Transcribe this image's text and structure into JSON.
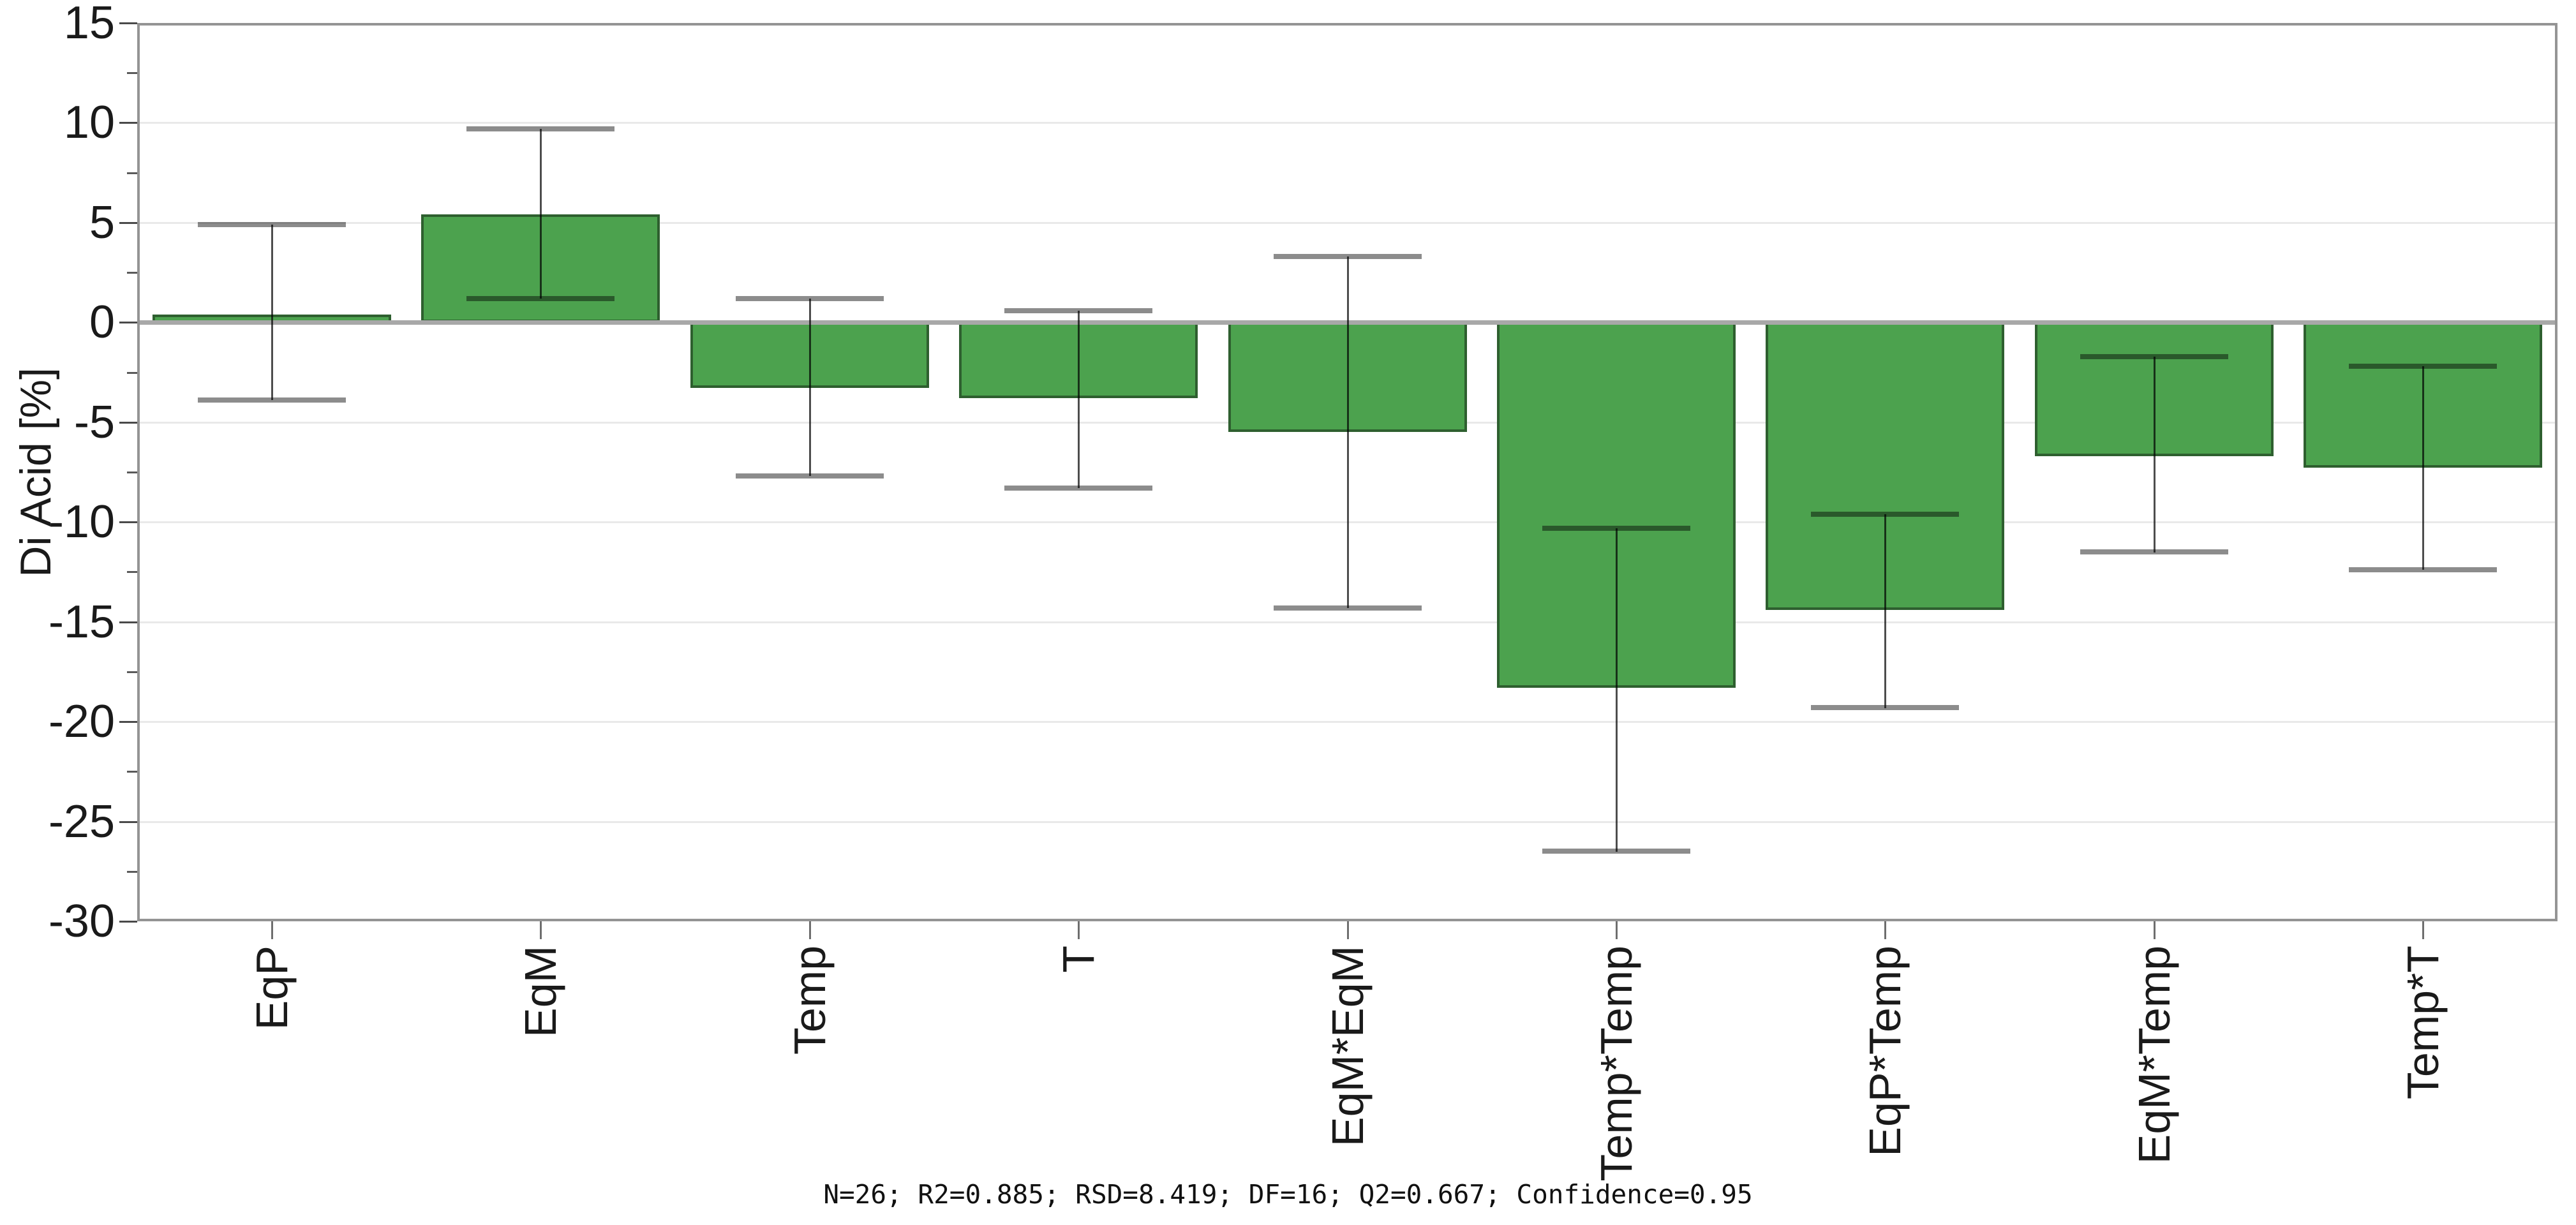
{
  "chart_data": {
    "type": "bar",
    "title": "",
    "ylabel": "Di Acid [%]",
    "xlabel": "",
    "categories": [
      "EqP",
      "EqM",
      "Temp",
      "T",
      "EqM*EqM",
      "Temp*Temp",
      "EqP*Temp",
      "EqM*Temp",
      "Temp*T"
    ],
    "values": [
      0.4,
      5.4,
      -3.3,
      -3.8,
      -5.5,
      -18.3,
      -14.4,
      -6.7,
      -7.3
    ],
    "error_high": [
      4.9,
      9.7,
      1.2,
      0.6,
      3.3,
      -10.3,
      -9.6,
      -1.7,
      -2.2
    ],
    "error_low": [
      -3.9,
      1.2,
      -7.7,
      -8.3,
      -14.3,
      -26.5,
      -19.3,
      -11.5,
      -12.4
    ],
    "ylim": [
      -30,
      15
    ],
    "y_major_ticks": [
      {
        "v": 15,
        "label": "15"
      },
      {
        "v": 10,
        "label": "10"
      },
      {
        "v": 5,
        "label": "5"
      },
      {
        "v": 0,
        "label": "0"
      },
      {
        "v": -5,
        "label": "-5"
      },
      {
        "v": -10,
        "label": "-10"
      },
      {
        "v": -15,
        "label": "-15"
      },
      {
        "v": -20,
        "label": "-20"
      },
      {
        "v": -25,
        "label": "-25"
      },
      {
        "v": -30,
        "label": "-30"
      }
    ],
    "y_minor_ticks": [
      12.5,
      7.5,
      2.5,
      -2.5,
      -7.5,
      -12.5,
      -17.5,
      -22.5,
      -27.5
    ],
    "grid": "horizontal-major",
    "legend": "none",
    "colors": {
      "bar_fill": "#4CA24E",
      "bar_border": "#2E5F2F",
      "zero_line": "#A8A8A8",
      "grid_line": "#E9E9E9",
      "frame": "#949494",
      "error_line": "#4D4D4D",
      "error_cap": "#8C8C8C",
      "text": "#1A1A1A"
    }
  },
  "footer": {
    "stats": "N=26; R2=0.885; RSD=8.419; DF=16; Q2=0.667; Confidence=0.95"
  }
}
